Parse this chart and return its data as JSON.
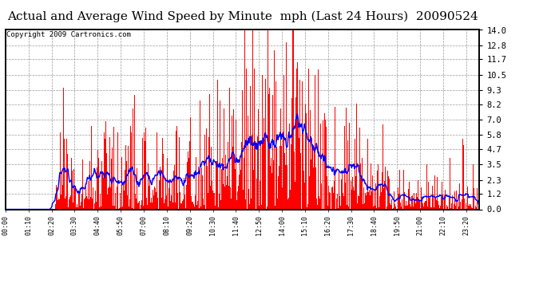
{
  "title": "Actual and Average Wind Speed by Minute  mph (Last 24 Hours)  20090524",
  "copyright": "Copyright 2009 Cartronics.com",
  "ylabel_right": [
    "14.0",
    "12.8",
    "11.7",
    "10.5",
    "9.3",
    "8.2",
    "7.0",
    "5.8",
    "4.7",
    "3.5",
    "2.3",
    "1.2",
    "0.0"
  ],
  "yticks_right": [
    14.0,
    12.8,
    11.7,
    10.5,
    9.3,
    8.2,
    7.0,
    5.8,
    4.7,
    3.5,
    2.3,
    1.2,
    0.0
  ],
  "ymax": 14.0,
  "ymin": 0.0,
  "bar_color": "#FF0000",
  "line_color": "#0000FF",
  "background_color": "#FFFFFF",
  "grid_color": "#999999",
  "title_fontsize": 11,
  "copyright_fontsize": 6.5,
  "x_tick_step_min": 70,
  "avg_window": 30,
  "n_points": 1440
}
